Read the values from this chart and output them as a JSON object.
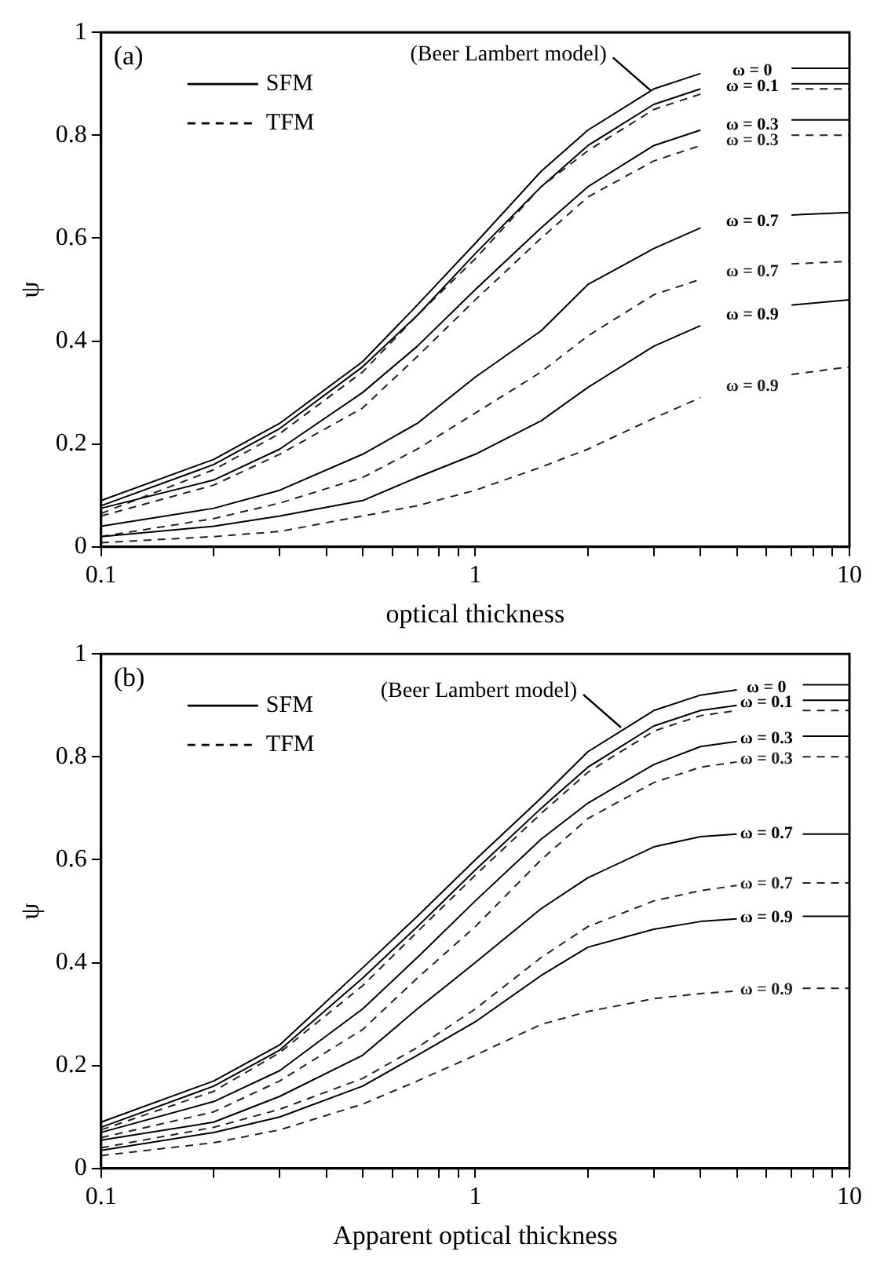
{
  "chart_data": [
    {
      "type": "line",
      "xlabel": "optical thickness",
      "ylabel": "ψ",
      "log": "x",
      "xlim": [
        0.1,
        10
      ],
      "ylim": [
        0,
        1
      ],
      "marker": "none",
      "xticks": [
        0.1,
        {
          "value": 0.2,
          "label": null
        },
        {
          "value": 0.3,
          "label": null
        },
        {
          "value": 0.4,
          "label": null
        },
        {
          "value": 0.5,
          "label": null
        },
        {
          "value": 0.6,
          "label": null
        },
        {
          "value": 0.7,
          "label": null
        },
        {
          "value": 0.8,
          "label": null
        },
        {
          "value": 0.9,
          "label": null
        },
        1,
        {
          "value": 2,
          "label": null
        },
        {
          "value": 3,
          "label": null
        },
        {
          "value": 4,
          "label": null
        },
        {
          "value": 5,
          "label": null
        },
        {
          "value": 6,
          "label": null
        },
        {
          "value": 7,
          "label": null
        },
        {
          "value": 8,
          "label": null
        },
        {
          "value": 9,
          "label": null
        },
        10
      ],
      "yticks": [
        0,
        0.2,
        0.4,
        0.6,
        0.8,
        1
      ],
      "annotations": [
        "(a)",
        "SFM",
        "TFM",
        {
          "text": "(Beer Lambert model)",
          "x": 3,
          "y": 0.89
        }
      ],
      "series": [
        {
          "name": "ω = 0",
          "color": "#000000",
          "line_style": "solid",
          "x": [
            0.1,
            0.2,
            0.3,
            0.5,
            0.7,
            1,
            1.5,
            2,
            3,
            4,
            5.5,
            7,
            10
          ],
          "values": [
            0.09,
            0.17,
            0.24,
            0.36,
            0.47,
            0.59,
            0.73,
            0.81,
            0.89,
            0.92,
            null,
            0.93,
            0.93
          ]
        },
        {
          "name": "ω = 0.1",
          "color": "#000000",
          "line_style": "solid",
          "x": [
            0.1,
            0.2,
            0.3,
            0.5,
            0.7,
            1,
            1.5,
            2,
            3,
            4,
            5.5,
            7,
            10
          ],
          "values": [
            0.08,
            0.16,
            0.23,
            0.35,
            0.45,
            0.57,
            0.7,
            0.78,
            0.86,
            0.89,
            null,
            0.9,
            0.9
          ]
        },
        {
          "color": "#222222",
          "line_style": "dashed",
          "x": [
            0.1,
            0.2,
            0.3,
            0.5,
            0.7,
            1,
            1.5,
            2,
            3,
            4,
            5.5,
            7,
            10
          ],
          "values": [
            0.065,
            0.15,
            0.22,
            0.34,
            0.45,
            0.56,
            0.7,
            0.77,
            0.85,
            0.88,
            null,
            0.89,
            0.89
          ]
        },
        {
          "name": "ω = 0.3",
          "color": "#000000",
          "line_style": "solid",
          "x": [
            0.1,
            0.2,
            0.3,
            0.5,
            0.7,
            1,
            1.5,
            2,
            3,
            4,
            5.5,
            7,
            10
          ],
          "values": [
            0.075,
            0.13,
            0.19,
            0.3,
            0.39,
            0.5,
            0.62,
            0.7,
            0.78,
            0.81,
            null,
            0.83,
            0.83
          ]
        },
        {
          "name": "ω = 0.3",
          "color": "#222222",
          "line_style": "dashed",
          "x": [
            0.1,
            0.2,
            0.3,
            0.5,
            0.7,
            1,
            1.5,
            2,
            3,
            4,
            5.5,
            7,
            10
          ],
          "values": [
            0.06,
            0.12,
            0.18,
            0.27,
            0.37,
            0.48,
            0.6,
            0.68,
            0.75,
            0.78,
            null,
            0.8,
            0.8
          ]
        },
        {
          "name": "ω = 0.7",
          "color": "#000000",
          "line_style": "solid",
          "x": [
            0.1,
            0.2,
            0.3,
            0.5,
            0.7,
            1,
            1.5,
            2,
            3,
            4,
            5.5,
            7,
            10
          ],
          "values": [
            0.04,
            0.075,
            0.11,
            0.18,
            0.24,
            0.33,
            0.42,
            0.51,
            0.58,
            0.62,
            null,
            0.645,
            0.65
          ]
        },
        {
          "name": "ω = 0.7",
          "color": "#222222",
          "line_style": "dashed",
          "x": [
            0.1,
            0.2,
            0.3,
            0.5,
            0.7,
            1,
            1.5,
            2,
            3,
            4,
            5.5,
            7,
            10
          ],
          "values": [
            0.02,
            0.055,
            0.085,
            0.135,
            0.19,
            0.26,
            0.34,
            0.41,
            0.49,
            0.52,
            null,
            0.55,
            0.555
          ]
        },
        {
          "name": "ω = 0.9",
          "color": "#000000",
          "line_style": "solid",
          "x": [
            0.1,
            0.2,
            0.3,
            0.5,
            0.7,
            1,
            1.5,
            2,
            3,
            4,
            5.5,
            7,
            10
          ],
          "values": [
            0.02,
            0.04,
            0.06,
            0.09,
            0.135,
            0.18,
            0.245,
            0.31,
            0.39,
            0.43,
            null,
            0.47,
            0.48
          ]
        },
        {
          "name": "ω = 0.9",
          "color": "#222222",
          "line_style": "dashed",
          "x": [
            0.1,
            0.2,
            0.3,
            0.5,
            0.7,
            1,
            1.5,
            2,
            3,
            4,
            5.5,
            7,
            10
          ],
          "values": [
            0.008,
            0.02,
            0.03,
            0.06,
            0.08,
            0.11,
            0.155,
            0.19,
            0.25,
            0.29,
            null,
            0.335,
            0.35
          ]
        }
      ]
    },
    {
      "type": "line",
      "xlabel": "Apparent optical thickness",
      "ylabel": "ψ",
      "log": "x",
      "xlim": [
        0.1,
        10
      ],
      "ylim": [
        0,
        1
      ],
      "marker": "none",
      "xticks": [
        0.1,
        {
          "value": 0.2,
          "label": null
        },
        {
          "value": 0.3,
          "label": null
        },
        {
          "value": 0.4,
          "label": null
        },
        {
          "value": 0.5,
          "label": null
        },
        {
          "value": 0.6,
          "label": null
        },
        {
          "value": 0.7,
          "label": null
        },
        {
          "value": 0.8,
          "label": null
        },
        {
          "value": 0.9,
          "label": null
        },
        1,
        {
          "value": 2,
          "label": null
        },
        {
          "value": 3,
          "label": null
        },
        {
          "value": 4,
          "label": null
        },
        {
          "value": 5,
          "label": null
        },
        {
          "value": 6,
          "label": null
        },
        {
          "value": 7,
          "label": null
        },
        {
          "value": 8,
          "label": null
        },
        {
          "value": 9,
          "label": null
        },
        10
      ],
      "yticks": [
        0,
        0.2,
        0.4,
        0.6,
        0.8,
        1
      ],
      "annotations": [
        "(b)",
        "SFM",
        "TFM",
        {
          "text": "(Beer Lambert model)",
          "x": 2.5,
          "y": 0.86
        }
      ],
      "series": [
        {
          "name": "ω = 0",
          "color": "#000000",
          "line_style": "solid",
          "x": [
            0.1,
            0.2,
            0.3,
            0.5,
            0.7,
            1,
            1.5,
            2,
            3,
            4,
            5,
            6,
            7.5,
            10
          ],
          "values": [
            0.09,
            0.17,
            0.24,
            0.39,
            0.49,
            0.6,
            0.72,
            0.81,
            0.89,
            0.92,
            0.93,
            null,
            0.94,
            0.94
          ]
        },
        {
          "name": "ω = 0.1",
          "color": "#000000",
          "line_style": "solid",
          "x": [
            0.1,
            0.2,
            0.3,
            0.5,
            0.7,
            1,
            1.5,
            2,
            3,
            4,
            5,
            6,
            7.5,
            10
          ],
          "values": [
            0.08,
            0.16,
            0.23,
            0.37,
            0.47,
            0.58,
            0.7,
            0.78,
            0.86,
            0.89,
            0.9,
            null,
            0.91,
            0.91
          ]
        },
        {
          "color": "#222222",
          "line_style": "dashed",
          "x": [
            0.1,
            0.2,
            0.3,
            0.5,
            0.7,
            1,
            1.5,
            2,
            3,
            4,
            5,
            6,
            7.5,
            10
          ],
          "values": [
            0.075,
            0.15,
            0.225,
            0.355,
            0.46,
            0.57,
            0.69,
            0.77,
            0.85,
            0.88,
            0.89,
            null,
            0.89,
            0.89
          ]
        },
        {
          "name": "ω = 0.3",
          "color": "#000000",
          "line_style": "solid",
          "x": [
            0.1,
            0.2,
            0.3,
            0.5,
            0.7,
            1,
            1.5,
            2,
            3,
            4,
            5,
            6,
            7.5,
            10
          ],
          "values": [
            0.07,
            0.13,
            0.19,
            0.31,
            0.41,
            0.52,
            0.64,
            0.71,
            0.785,
            0.82,
            0.83,
            null,
            0.84,
            0.84
          ]
        },
        {
          "name": "ω = 0.3",
          "color": "#222222",
          "line_style": "dashed",
          "x": [
            0.1,
            0.2,
            0.3,
            0.5,
            0.7,
            1,
            1.5,
            2,
            3,
            4,
            5,
            6,
            7.5,
            10
          ],
          "values": [
            0.06,
            0.11,
            0.17,
            0.27,
            0.37,
            0.47,
            0.6,
            0.68,
            0.75,
            0.78,
            0.79,
            null,
            0.8,
            0.8
          ]
        },
        {
          "name": "ω = 0.7",
          "color": "#000000",
          "line_style": "solid",
          "x": [
            0.1,
            0.2,
            0.3,
            0.5,
            0.7,
            1,
            1.5,
            2,
            3,
            4,
            5,
            6,
            7.5,
            10
          ],
          "values": [
            0.055,
            0.09,
            0.14,
            0.22,
            0.31,
            0.4,
            0.505,
            0.565,
            0.625,
            0.645,
            0.65,
            null,
            0.65,
            0.65
          ]
        },
        {
          "name": "ω = 0.7",
          "color": "#222222",
          "line_style": "dashed",
          "x": [
            0.1,
            0.2,
            0.3,
            0.5,
            0.7,
            1,
            1.5,
            2,
            3,
            4,
            5,
            6,
            7.5,
            10
          ],
          "values": [
            0.04,
            0.08,
            0.115,
            0.175,
            0.235,
            0.31,
            0.41,
            0.47,
            0.52,
            0.54,
            0.55,
            null,
            0.555,
            0.555
          ]
        },
        {
          "name": "ω = 0.9",
          "color": "#000000",
          "line_style": "solid",
          "x": [
            0.1,
            0.2,
            0.3,
            0.5,
            0.7,
            1,
            1.5,
            2,
            3,
            4,
            5,
            6,
            7.5,
            10
          ],
          "values": [
            0.035,
            0.07,
            0.1,
            0.16,
            0.22,
            0.285,
            0.375,
            0.43,
            0.465,
            0.48,
            0.485,
            null,
            0.49,
            0.49
          ]
        },
        {
          "name": "ω = 0.9",
          "color": "#222222",
          "line_style": "dashed",
          "x": [
            0.1,
            0.2,
            0.3,
            0.5,
            0.7,
            1,
            1.5,
            2,
            3,
            4,
            5,
            6,
            7.5,
            10
          ],
          "values": [
            0.025,
            0.05,
            0.075,
            0.125,
            0.17,
            0.22,
            0.28,
            0.305,
            0.33,
            0.34,
            0.345,
            null,
            0.35,
            0.35
          ]
        }
      ]
    }
  ]
}
